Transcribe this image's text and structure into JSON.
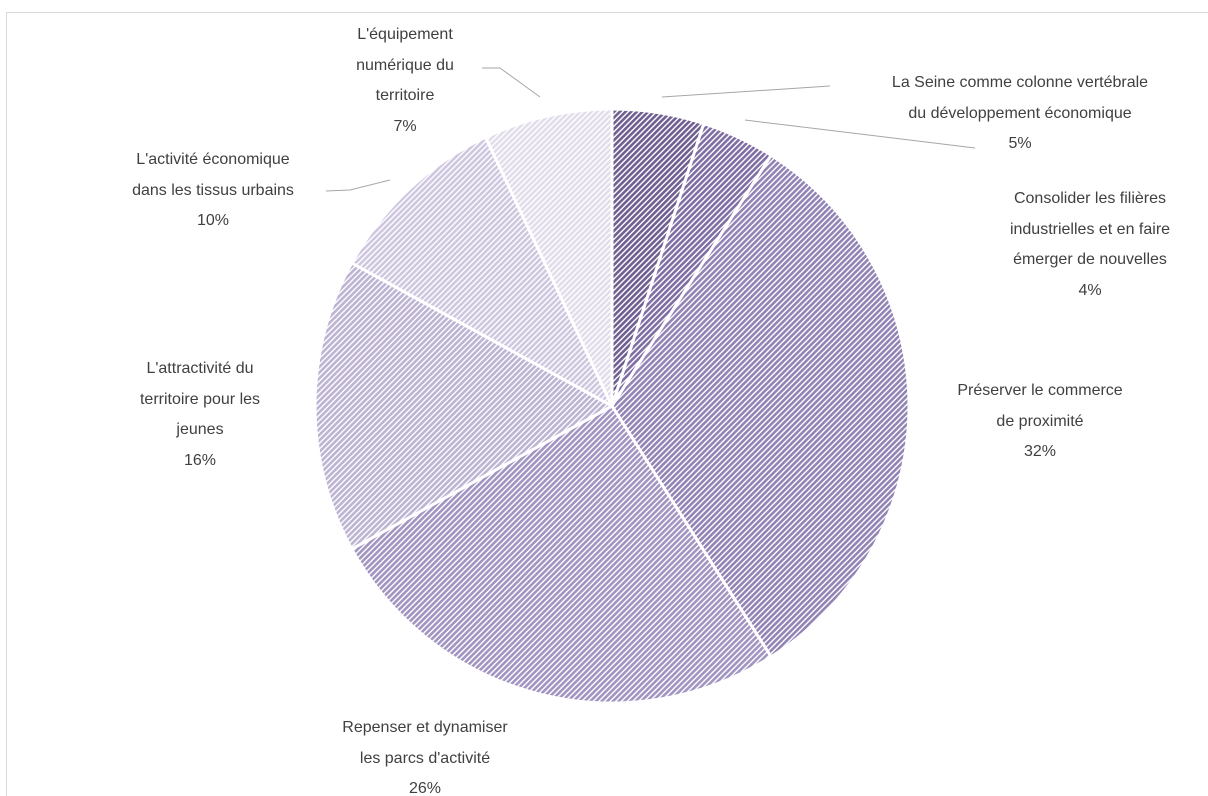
{
  "chart_data": {
    "type": "pie",
    "categories": [
      "La Seine comme colonne vertébrale\ndu développement économique",
      "Consolider les filières\nindustrielles et en faire\némerger de nouvelles",
      "Préserver le commerce\nde proximité",
      "Repenser et dynamiser\nles parcs d'activité",
      "L'attractivité du\nterritoire pour les\njeunes",
      "L'activité économique\ndans les tissus urbains",
      "L'équipement\nnumérique du\nterritoire"
    ],
    "values": [
      5,
      4,
      32,
      26,
      16,
      10,
      7
    ],
    "value_labels": [
      "5%",
      "4%",
      "32%",
      "26%",
      "16%",
      "10%",
      "7%"
    ],
    "colors": [
      "#6f5f91",
      "#7f6ea3",
      "#9283b5",
      "#a194c0",
      "#bdb3d3",
      "#cfc7e0",
      "#e2ddeb"
    ]
  }
}
